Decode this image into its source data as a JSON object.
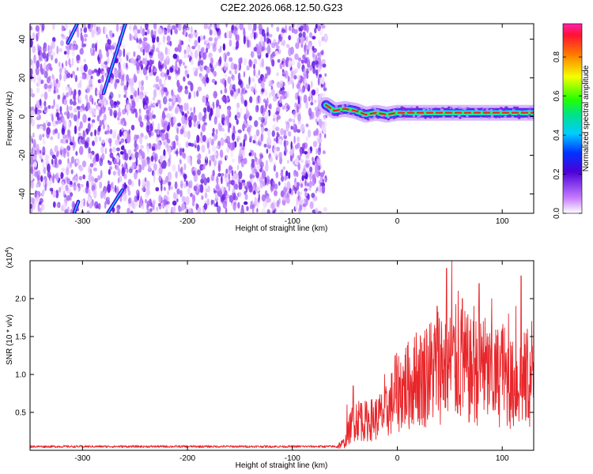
{
  "title": "C2E2.2026.068.12.50.G23",
  "colors": {
    "snr_line": "#e8262a",
    "ridge": "#ee2222"
  },
  "chart_data": [
    {
      "type": "heatmap",
      "name": "spectrogram",
      "xlabel": "Height of straight line (km)",
      "ylabel": "Frequency (Hz)",
      "xlim": [
        -350,
        130
      ],
      "ylim": [
        -50,
        48
      ],
      "x_ticks": [
        -300,
        -200,
        -100,
        0,
        100
      ],
      "y_ticks": [
        -40,
        -20,
        0,
        20,
        40
      ],
      "noise_region_x": [
        -350,
        -68
      ],
      "ridge_x": [
        -68,
        130
      ],
      "ridge_frequency_hz": [
        [
          -68,
          6
        ],
        [
          -60,
          3
        ],
        [
          -50,
          4
        ],
        [
          -40,
          3
        ],
        [
          -30,
          1
        ],
        [
          -20,
          2
        ],
        [
          -10,
          1
        ],
        [
          0,
          2
        ],
        [
          20,
          2
        ],
        [
          40,
          2
        ],
        [
          60,
          2
        ],
        [
          80,
          2
        ],
        [
          100,
          2
        ],
        [
          130,
          2
        ]
      ],
      "streaks": [
        {
          "x": [
            -314,
            -305
          ],
          "y": [
            38,
            48
          ]
        },
        {
          "x": [
            -280,
            -259
          ],
          "y": [
            12,
            48
          ]
        },
        {
          "x": [
            -308,
            -304
          ],
          "y": [
            -50,
            -44
          ]
        },
        {
          "x": [
            -276,
            -262
          ],
          "y": [
            -50,
            -38
          ]
        }
      ],
      "colorbar": {
        "label": "Normalized spectral amplitude",
        "range": [
          0,
          0.97
        ],
        "ticks": [
          0.0,
          0.2,
          0.4,
          0.6,
          0.8
        ],
        "tick_labels": [
          "0.0",
          "0.2",
          "0.4",
          "0.6",
          "0.8"
        ]
      }
    },
    {
      "type": "line",
      "name": "snr",
      "xlabel": "Height of straight line (km)",
      "ylabel": "SNR (10 * v/v)",
      "y_exponent_label": "(x10",
      "y_exponent_power": "4",
      "y_exponent_close": ")",
      "xlim": [
        -350,
        130
      ],
      "ylim": [
        0,
        2.5
      ],
      "x_ticks": [
        -300,
        -200,
        -100,
        0,
        100
      ],
      "y_ticks": [
        0.5,
        1.0,
        1.5,
        2.0
      ],
      "y_tick_labels": [
        "0.5",
        "1.0",
        "1.5",
        "2.0"
      ],
      "envelope": [
        [
          -350,
          0.04
        ],
        [
          -60,
          0.04
        ],
        [
          -50,
          0.12
        ],
        [
          -45,
          0.35
        ],
        [
          -40,
          0.5
        ],
        [
          -30,
          0.45
        ],
        [
          -20,
          0.5
        ],
        [
          -10,
          0.6
        ],
        [
          0,
          0.9
        ],
        [
          10,
          1.0
        ],
        [
          20,
          1.1
        ],
        [
          30,
          1.2
        ],
        [
          40,
          1.35
        ],
        [
          50,
          1.3
        ],
        [
          60,
          1.35
        ],
        [
          70,
          1.2
        ],
        [
          80,
          1.3
        ],
        [
          90,
          1.1
        ],
        [
          100,
          1.2
        ],
        [
          110,
          1.0
        ],
        [
          120,
          1.1
        ],
        [
          130,
          1.0
        ]
      ],
      "peaks": [
        [
          -48,
          0.6
        ],
        [
          -42,
          0.85
        ],
        [
          -35,
          0.62
        ],
        [
          -12,
          1.0
        ],
        [
          -2,
          1.25
        ],
        [
          8,
          1.35
        ],
        [
          18,
          1.55
        ],
        [
          28,
          1.6
        ],
        [
          38,
          1.9
        ],
        [
          42,
          1.7
        ],
        [
          47,
          2.4
        ],
        [
          52,
          2.55
        ],
        [
          58,
          2.1
        ],
        [
          62,
          2.0
        ],
        [
          66,
          1.75
        ],
        [
          73,
          1.9
        ],
        [
          78,
          2.2
        ],
        [
          82,
          1.7
        ],
        [
          90,
          2.0
        ],
        [
          100,
          1.6
        ],
        [
          106,
          1.8
        ],
        [
          113,
          1.9
        ],
        [
          118,
          2.3
        ],
        [
          124,
          1.6
        ],
        [
          128,
          1.7
        ]
      ]
    }
  ]
}
